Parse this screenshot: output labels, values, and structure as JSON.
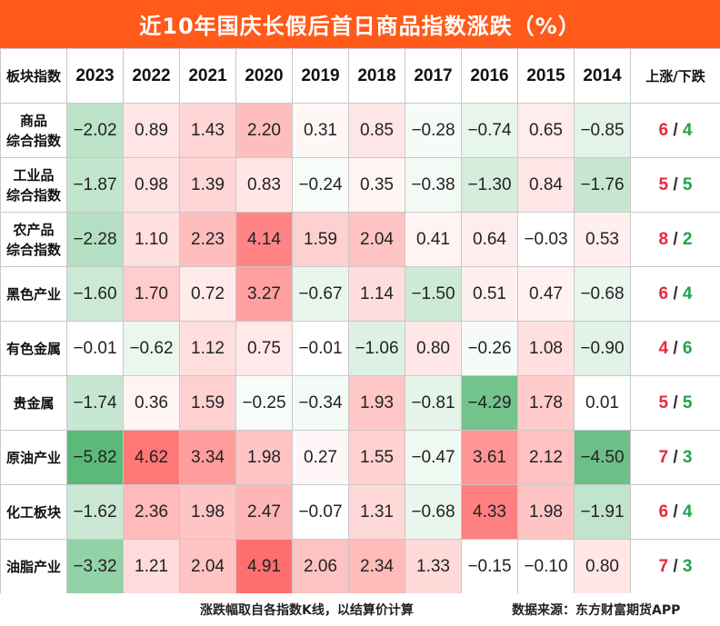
{
  "title": "近10年国庆长假后首日商品指数涨跌（%）",
  "header": {
    "first": "板块指数",
    "last": "上涨/下跌"
  },
  "chart_data": {
    "type": "heatmap",
    "title": "近10年国庆长假后首日商品指数涨跌（%）",
    "columns": [
      "2023",
      "2022",
      "2021",
      "2020",
      "2019",
      "2018",
      "2017",
      "2016",
      "2015",
      "2014"
    ],
    "rows": [
      {
        "name": [
          "商品",
          "综合指数"
        ],
        "values": [
          "−2.02",
          "0.89",
          "1.43",
          "2.20",
          "0.31",
          "0.85",
          "−0.28",
          "−0.74",
          "0.65",
          "−0.85"
        ],
        "up": "6",
        "down": "4"
      },
      {
        "name": [
          "工业品",
          "综合指数"
        ],
        "values": [
          "−1.87",
          "0.98",
          "1.39",
          "0.83",
          "−0.24",
          "0.35",
          "−0.38",
          "−1.30",
          "0.84",
          "−1.76"
        ],
        "up": "5",
        "down": "5"
      },
      {
        "name": [
          "农产品",
          "综合指数"
        ],
        "values": [
          "−2.28",
          "1.10",
          "2.23",
          "4.14",
          "1.59",
          "2.04",
          "0.41",
          "0.64",
          "−0.03",
          "0.53"
        ],
        "up": "8",
        "down": "2"
      },
      {
        "name": [
          "黑色产业"
        ],
        "values": [
          "−1.60",
          "1.70",
          "0.72",
          "3.27",
          "−0.67",
          "1.14",
          "−1.50",
          "0.51",
          "0.47",
          "−0.68"
        ],
        "up": "6",
        "down": "4"
      },
      {
        "name": [
          "有色金属"
        ],
        "values": [
          "−0.01",
          "−0.62",
          "1.12",
          "0.75",
          "−0.01",
          "−1.06",
          "0.80",
          "−0.26",
          "1.08",
          "−0.90"
        ],
        "up": "4",
        "down": "6"
      },
      {
        "name": [
          "贵金属"
        ],
        "values": [
          "−1.74",
          "0.36",
          "1.59",
          "−0.25",
          "−0.34",
          "1.93",
          "−0.81",
          "−4.29",
          "1.78",
          "0.01"
        ],
        "up": "5",
        "down": "5"
      },
      {
        "name": [
          "原油产业"
        ],
        "values": [
          "−5.82",
          "4.62",
          "3.34",
          "1.98",
          "0.27",
          "1.55",
          "−0.47",
          "3.61",
          "2.12",
          "−4.50"
        ],
        "up": "7",
        "down": "3"
      },
      {
        "name": [
          "化工板块"
        ],
        "values": [
          "−1.62",
          "2.36",
          "1.98",
          "2.47",
          "−0.07",
          "1.31",
          "−0.68",
          "4.33",
          "1.98",
          "−1.91"
        ],
        "up": "6",
        "down": "4"
      },
      {
        "name": [
          "油脂产业"
        ],
        "values": [
          "−3.32",
          "1.21",
          "2.04",
          "4.91",
          "2.06",
          "2.34",
          "1.33",
          "−0.15",
          "−0.10",
          "0.80"
        ],
        "up": "7",
        "down": "3"
      }
    ]
  },
  "colors": {
    "title_bg": "#ff5a1a",
    "positive": "#ee5a5a",
    "negative": "#5cb97a",
    "up_text": "#e8283b",
    "down_text": "#22a34a"
  },
  "footer": {
    "note": "涨跌幅取自各指数K线，以结算价计算",
    "source": "数据来源：东方财富期货APP"
  }
}
